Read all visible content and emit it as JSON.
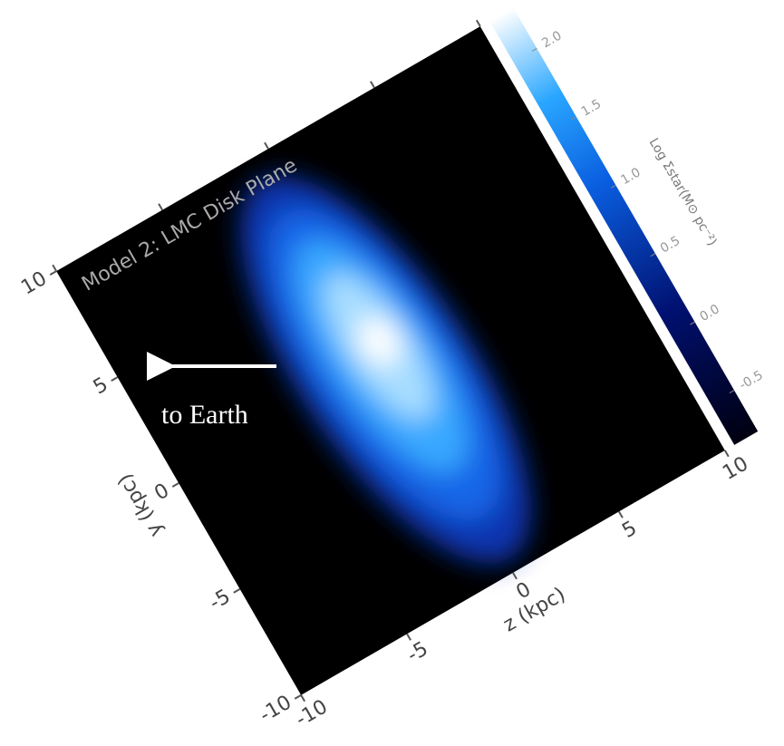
{
  "chart_data": {
    "type": "image",
    "title": "Model 2: LMC Disk Plane",
    "xlabel": "z (kpc)",
    "ylabel": "y (kpc)",
    "xlim": [
      -10,
      10
    ],
    "ylim": [
      -10,
      10
    ],
    "xticks": [
      -10,
      -5,
      0,
      5,
      10
    ],
    "yticks": [
      -10,
      -5,
      0,
      5,
      10
    ],
    "colorbar": {
      "label": "Log Σstar(M⊙ pc⁻²)",
      "lim": [
        -0.8,
        2.3
      ],
      "ticks": [
        -0.5,
        {
          "value": 0,
          "label": "0.0"
        },
        0.5,
        {
          "value": 1,
          "label": "1.0"
        },
        1.5,
        {
          "value": 2,
          "label": "2.0"
        }
      ]
    },
    "annotation": "to Earth"
  }
}
